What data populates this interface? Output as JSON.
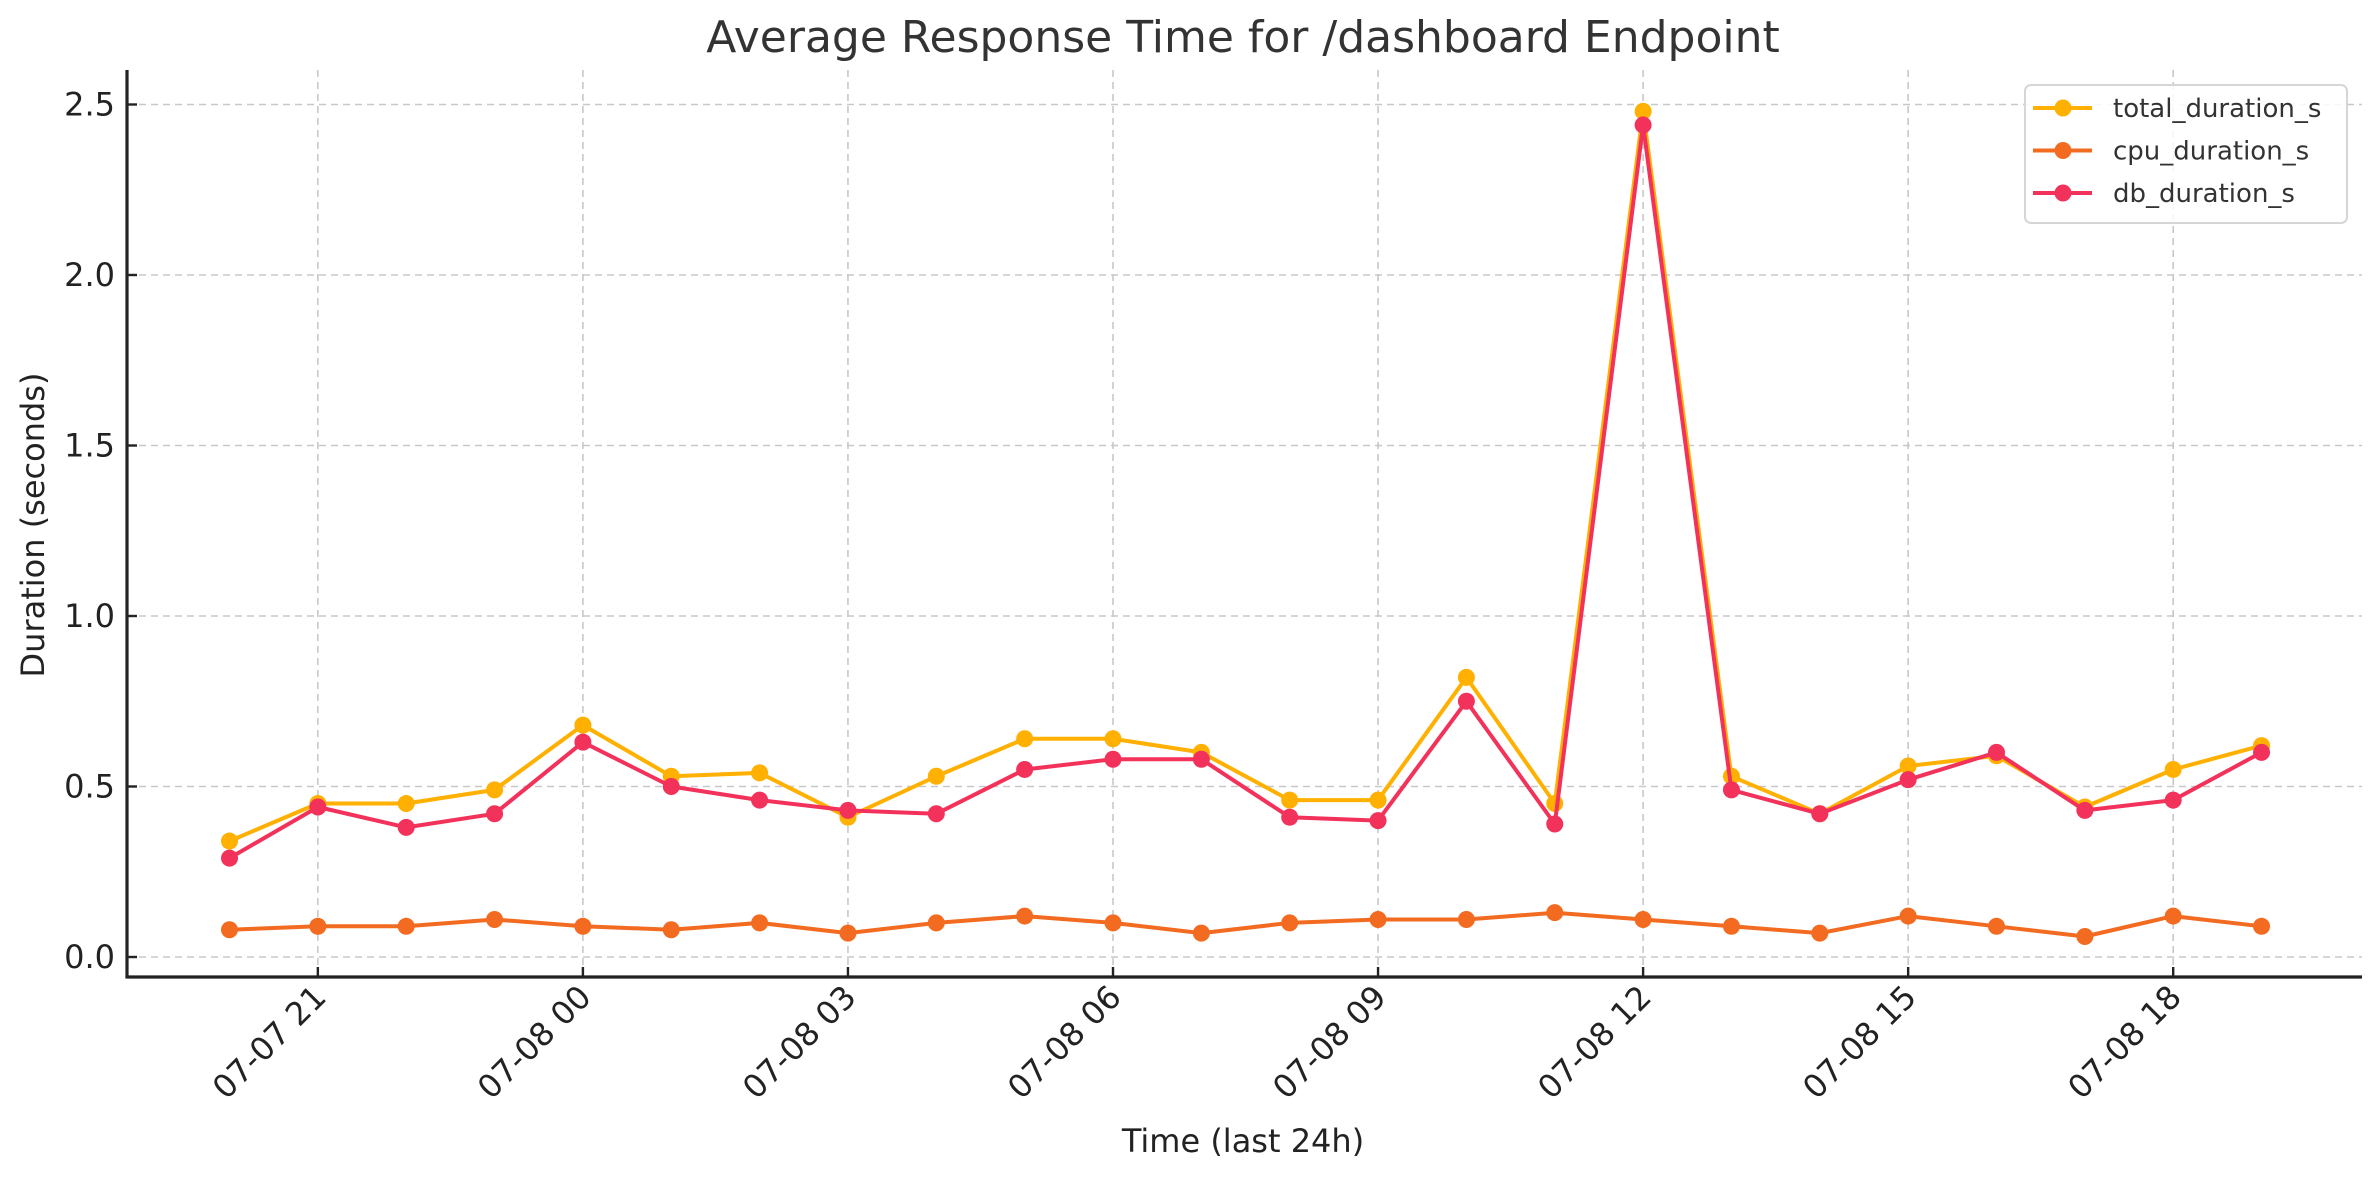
{
  "chart_data": {
    "type": "line",
    "title": "Average Response Time for /dashboard Endpoint",
    "xlabel": "Time (last 24h)",
    "ylabel": "Duration (seconds)",
    "ylim": [
      -0.055,
      2.62
    ],
    "yticks": [
      0.0,
      0.5,
      1.0,
      1.5,
      2.0,
      2.5
    ],
    "ytick_labels": [
      "0.0",
      "0.5",
      "1.0",
      "1.5",
      "2.0",
      "2.5"
    ],
    "xtick_labels": [
      "07-07 21",
      "07-08 00",
      "07-08 03",
      "07-08 06",
      "07-08 09",
      "07-08 12",
      "07-08 15",
      "07-08 18"
    ],
    "xtick_hour_index": [
      1,
      4,
      7,
      10,
      13,
      16,
      19,
      22
    ],
    "grid": true,
    "legend_position": "upper right",
    "x": [
      "07-07 20",
      "07-07 21",
      "07-07 22",
      "07-07 23",
      "07-08 00",
      "07-08 01",
      "07-08 02",
      "07-08 03",
      "07-08 04",
      "07-08 05",
      "07-08 06",
      "07-08 07",
      "07-08 08",
      "07-08 09",
      "07-08 10",
      "07-08 11",
      "07-08 12",
      "07-08 13",
      "07-08 14",
      "07-08 15",
      "07-08 16",
      "07-08 17",
      "07-08 18",
      "07-08 19"
    ],
    "series": [
      {
        "name": "total_duration_s",
        "color": "#FFB000",
        "marker": "circle",
        "values": [
          0.34,
          0.45,
          0.45,
          0.49,
          0.68,
          0.53,
          0.54,
          0.41,
          0.53,
          0.64,
          0.64,
          0.6,
          0.46,
          0.46,
          0.82,
          0.45,
          2.48,
          0.53,
          0.42,
          0.56,
          0.59,
          0.44,
          0.55,
          0.62
        ]
      },
      {
        "name": "cpu_duration_s",
        "color": "#F26B21",
        "marker": "circle",
        "values": [
          0.08,
          0.09,
          0.09,
          0.11,
          0.09,
          0.08,
          0.1,
          0.07,
          0.1,
          0.12,
          0.1,
          0.07,
          0.1,
          0.11,
          0.11,
          0.13,
          0.11,
          0.09,
          0.07,
          0.12,
          0.09,
          0.06,
          0.12,
          0.09
        ]
      },
      {
        "name": "db_duration_s",
        "color": "#F2325A",
        "marker": "circle",
        "values": [
          0.29,
          0.44,
          0.38,
          0.42,
          0.63,
          0.5,
          0.46,
          0.43,
          0.42,
          0.55,
          0.58,
          0.58,
          0.41,
          0.4,
          0.75,
          0.39,
          2.44,
          0.49,
          0.42,
          0.52,
          0.6,
          0.43,
          0.46,
          0.6
        ]
      }
    ]
  }
}
